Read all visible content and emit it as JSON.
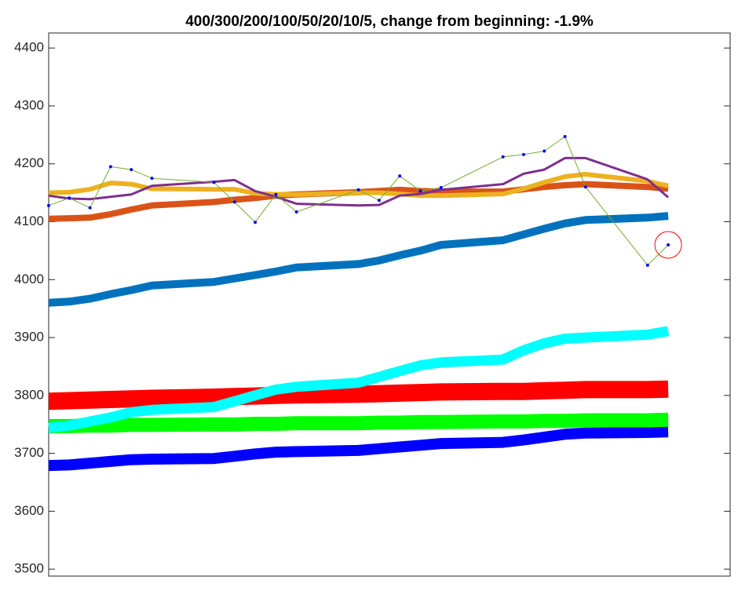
{
  "chart_data": {
    "type": "line",
    "title": "400/300/200/100/50/20/10/5, change from beginning:  -1.9%",
    "x": [
      0,
      1,
      2,
      3,
      4,
      5,
      8,
      9,
      10,
      11,
      12,
      15,
      16,
      17,
      18,
      19,
      22,
      23,
      24,
      25,
      26,
      29,
      30
    ],
    "xlim": [
      0,
      33
    ],
    "ylim": [
      3488,
      4426
    ],
    "yticks": [
      3500,
      3600,
      3700,
      3800,
      3900,
      4000,
      4100,
      4200,
      4300,
      4400
    ],
    "grid": false,
    "series": [
      {
        "color": "#0000ff",
        "values": [
          3679,
          3680,
          3683,
          3686,
          3689,
          3690,
          3691,
          3695,
          3699,
          3702,
          3703,
          3705,
          3708,
          3711,
          3714,
          3717,
          3719,
          3723,
          3728,
          3733,
          3735,
          3736,
          3737
        ]
      },
      {
        "color": "#00ff00",
        "values": [
          3747,
          3747,
          3748,
          3748,
          3749,
          3749,
          3750,
          3750,
          3751,
          3751,
          3752,
          3752,
          3753,
          3753,
          3754,
          3754,
          3755,
          3755,
          3756,
          3756,
          3757,
          3757,
          3758
        ]
      },
      {
        "color": "#ff0000",
        "values": [
          3790,
          3791,
          3792,
          3793,
          3794,
          3795,
          3797,
          3798,
          3799,
          3800,
          3801,
          3802,
          3803,
          3804,
          3805,
          3806,
          3807,
          3807,
          3808,
          3809,
          3810,
          3810,
          3811
        ]
      },
      {
        "color": "#00ffff",
        "values": [
          3744,
          3748,
          3755,
          3762,
          3771,
          3775,
          3780,
          3790,
          3800,
          3810,
          3815,
          3822,
          3832,
          3842,
          3852,
          3857,
          3862,
          3878,
          3890,
          3898,
          3900,
          3905,
          3911
        ]
      },
      {
        "color": "#0072bd",
        "values": [
          3960,
          3962,
          3967,
          3975,
          3982,
          3990,
          3996,
          4002,
          4008,
          4014,
          4021,
          4027,
          4033,
          4042,
          4050,
          4060,
          4068,
          4078,
          4088,
          4097,
          4103,
          4107,
          4110
        ]
      },
      {
        "color": "#d95319",
        "values": [
          4105,
          4106,
          4107,
          4113,
          4121,
          4128,
          4134,
          4138,
          4141,
          4145,
          4147,
          4151,
          4153,
          4155,
          4153,
          4152,
          4152,
          4156,
          4160,
          4163,
          4165,
          4160,
          4157
        ]
      },
      {
        "color": "#edb120",
        "values": [
          4150,
          4151,
          4156,
          4167,
          4165,
          4157,
          4156,
          4156,
          4149,
          4147,
          4147,
          4150,
          4150,
          4148,
          4145,
          4145,
          4148,
          4157,
          4168,
          4178,
          4182,
          4170,
          4162
        ]
      },
      {
        "color": "#7e2f8e",
        "values": [
          4145,
          4140,
          4139,
          4143,
          4147,
          4162,
          4169,
          4172,
          4153,
          4143,
          4131,
          4128,
          4129,
          4145,
          4148,
          4155,
          4165,
          4183,
          4190,
          4210,
          4210,
          4173,
          4142
        ]
      },
      {
        "color": "#77ac30",
        "marker_color": "#0000ff",
        "values": [
          4128,
          4141,
          4124,
          4195,
          4190,
          4175,
          4168,
          4134,
          4099,
          4147,
          4117,
          4155,
          4137,
          4179,
          4153,
          4159,
          4212,
          4216,
          4222,
          4247,
          4160,
          4025,
          4060
        ]
      }
    ],
    "highlight_color": "#ff0000"
  }
}
